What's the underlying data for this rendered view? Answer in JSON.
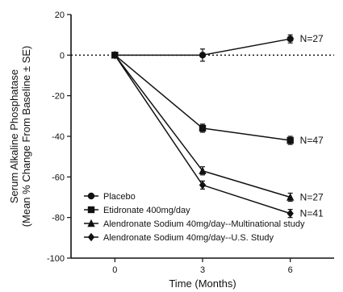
{
  "chart_data": {
    "type": "line",
    "title": "",
    "xlabel": "Time (Months)",
    "ylabel_line1": "Serum Alkaline Phosphatase",
    "ylabel_line2": "(Mean % Change From Baseline ± SE)",
    "x": [
      0,
      3,
      6
    ],
    "x_ticks": [
      0,
      3,
      6
    ],
    "xlim": [
      -1.5,
      7.5
    ],
    "ylim": [
      -100,
      20
    ],
    "y_ticks": [
      20,
      0,
      -20,
      -40,
      -60,
      -80,
      -100
    ],
    "zero_reference_line": true,
    "grid": false,
    "legend_position": "bottom-left",
    "series": [
      {
        "name": "Placebo",
        "marker": "circle",
        "values": [
          0,
          0,
          8
        ],
        "errors": [
          0,
          3,
          2
        ],
        "end_label": "N=27"
      },
      {
        "name": "Etidronate 400mg/day",
        "marker": "square",
        "values": [
          0,
          -36,
          -42
        ],
        "errors": [
          0,
          2,
          2
        ],
        "end_label": "N=47"
      },
      {
        "name": "Alendronate Sodium 40mg/day--Multinational study",
        "marker": "triangle",
        "values": [
          0,
          -57,
          -70
        ],
        "errors": [
          0,
          2,
          2
        ],
        "end_label": "N=27"
      },
      {
        "name": "Alendronate Sodium 40mg/day--U.S. Study",
        "marker": "diamond",
        "values": [
          0,
          -64,
          -78
        ],
        "errors": [
          0,
          2,
          2
        ],
        "end_label": "N=41"
      }
    ]
  }
}
